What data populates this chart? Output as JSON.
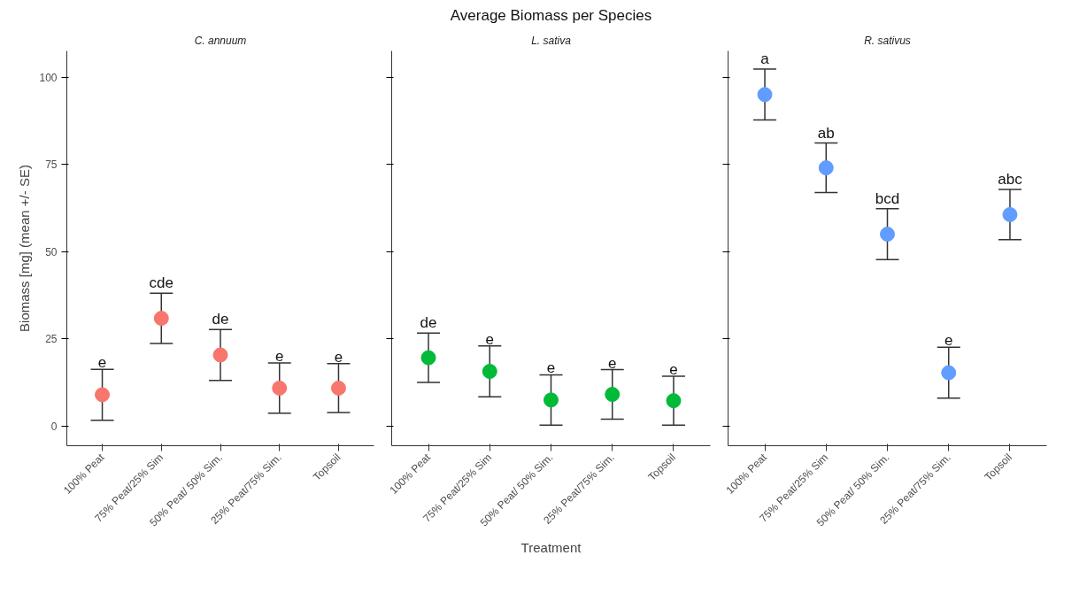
{
  "chart_data": [
    {
      "type": "scatter",
      "subtitle": "C. annuum",
      "ylabel": "Biomass [mg] (mean +/- SE)",
      "categories": [
        "100% Peat",
        "75% Peat/25% Sim",
        "50% Peat/ 50% Sim.",
        "25% Peat/75% Sim.",
        "Topsoil"
      ],
      "ylim": [
        -5.6,
        107.5
      ],
      "yticks": [
        0,
        25,
        50,
        75,
        100
      ],
      "grid": false,
      "marker": "circle",
      "series": [
        {
          "color": "#f8766d",
          "values": [
            9.0,
            30.9,
            20.4,
            10.9,
            10.9
          ],
          "errors": [
            7.3,
            7.2,
            7.3,
            7.2,
            7.0
          ],
          "value_labels": [
            "e",
            "cde",
            "de",
            "e",
            "e"
          ]
        }
      ]
    },
    {
      "type": "scatter",
      "title": "Average Biomass per Species",
      "subtitle": "L. sativa",
      "xlabel": "Treatment",
      "categories": [
        "100% Peat",
        "75% Peat/25% Sim",
        "50% Peat/ 50% Sim.",
        "25% Peat/75% Sim.",
        "Topsoil"
      ],
      "ylim": [
        -5.6,
        107.5
      ],
      "yticks": [
        0,
        25,
        50,
        75,
        100
      ],
      "tick_labels": "x",
      "grid": false,
      "marker": "circle",
      "series": [
        {
          "color": "#00ba38",
          "values": [
            19.6,
            15.7,
            7.5,
            9.1,
            7.3
          ],
          "errors": [
            7.1,
            7.3,
            7.2,
            7.1,
            7.0
          ],
          "value_labels": [
            "de",
            "e",
            "e",
            "e",
            "e"
          ]
        }
      ]
    },
    {
      "type": "scatter",
      "subtitle": "R. sativus",
      "categories": [
        "100% Peat",
        "75% Peat/25% Sim",
        "50% Peat/ 50% Sim.",
        "25% Peat/75% Sim.",
        "Topsoil"
      ],
      "ylim": [
        -5.6,
        107.5
      ],
      "yticks": [
        0,
        25,
        50,
        75,
        100
      ],
      "tick_labels": "x",
      "grid": false,
      "marker": "circle",
      "series": [
        {
          "color": "#619cff",
          "values": [
            95.0,
            74.0,
            55.0,
            15.3,
            60.6
          ],
          "errors": [
            7.3,
            7.1,
            7.3,
            7.3,
            7.2
          ],
          "value_labels": [
            "a",
            "ab",
            "bcd",
            "e",
            "abc"
          ]
        }
      ]
    }
  ]
}
